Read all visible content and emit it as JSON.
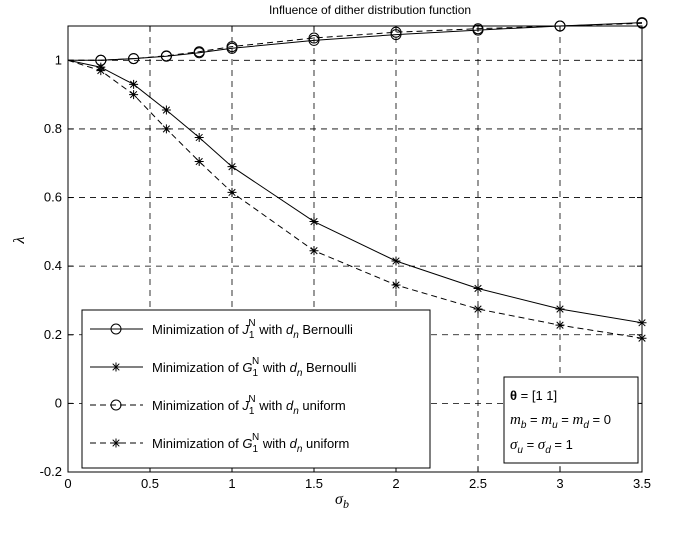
{
  "chart_data": {
    "type": "line",
    "title": "Influence of dither distribution function",
    "xlabel": "σ",
    "xlabel_sub": "b",
    "ylabel": "λ",
    "xlim": [
      0,
      3.5
    ],
    "ylim": [
      -0.2,
      1.1
    ],
    "xticks": [
      "0",
      "0.5",
      "1",
      "1.5",
      "2",
      "2.5",
      "3",
      "3.5"
    ],
    "yticks": [
      "-0.2",
      "0",
      "0.2",
      "0.4",
      "0.6",
      "0.8",
      "1"
    ],
    "grid": true,
    "legend_position": "bottom-left",
    "series": [
      {
        "marker": "circle",
        "line": "solid",
        "legend": {
          "pre": "Minimization of ",
          "sym": "J",
          "sub": "1",
          "sup": "N",
          "mid": " with ",
          "sym2": "d",
          "sub2": "n",
          "post": " Bernoulli"
        },
        "x": [
          0,
          0.2,
          0.4,
          0.6,
          0.8,
          1.0,
          1.5,
          2.0,
          2.5,
          3.0,
          3.5
        ],
        "y": [
          1.0,
          1.0,
          1.005,
          1.012,
          1.022,
          1.035,
          1.058,
          1.075,
          1.088,
          1.1,
          1.11
        ]
      },
      {
        "marker": "star",
        "line": "solid",
        "legend": {
          "pre": "Minimization of ",
          "sym": "G",
          "sub": "1",
          "sup": "N",
          "mid": " with ",
          "sym2": "d",
          "sub2": "n",
          "post": " Bernoulli"
        },
        "x": [
          0,
          0.2,
          0.4,
          0.6,
          0.8,
          1.0,
          1.5,
          2.0,
          2.5,
          3.0,
          3.5
        ],
        "y": [
          1.0,
          0.98,
          0.93,
          0.855,
          0.775,
          0.69,
          0.53,
          0.415,
          0.335,
          0.275,
          0.235
        ]
      },
      {
        "marker": "circle",
        "line": "dashed",
        "legend": {
          "pre": "Minimization of ",
          "sym": "J",
          "sub": "1",
          "sup": "N",
          "mid": " with ",
          "sym2": "d",
          "sub2": "n",
          "post": " uniform"
        },
        "x": [
          0,
          0.2,
          0.4,
          0.6,
          0.8,
          1.0,
          1.5,
          2.0,
          2.5,
          3.0,
          3.5
        ],
        "y": [
          1.0,
          1.0,
          1.005,
          1.013,
          1.025,
          1.04,
          1.065,
          1.082,
          1.092,
          1.1,
          1.108
        ]
      },
      {
        "marker": "star",
        "line": "dashed",
        "legend": {
          "pre": "Minimization of ",
          "sym": "G",
          "sub": "1",
          "sup": "N",
          "mid": " with ",
          "sym2": "d",
          "sub2": "n",
          "post": " uniform"
        },
        "x": [
          0,
          0.2,
          0.4,
          0.6,
          0.8,
          1.0,
          1.5,
          2.0,
          2.5,
          3.0,
          3.5
        ],
        "y": [
          1.0,
          0.97,
          0.9,
          0.8,
          0.705,
          0.615,
          0.445,
          0.345,
          0.275,
          0.228,
          0.19
        ]
      }
    ],
    "annotation": {
      "line1": {
        "sym": "θ",
        "rest": " = [1 1]"
      },
      "line2": {
        "a": "m",
        "as": "b",
        "b": "m",
        "bs": "u",
        "c": "m",
        "cs": "d",
        "tail": " = 0"
      },
      "line3": {
        "a": "σ",
        "as": "u",
        "b": "σ",
        "bs": "d",
        "tail": " = 1"
      }
    }
  }
}
